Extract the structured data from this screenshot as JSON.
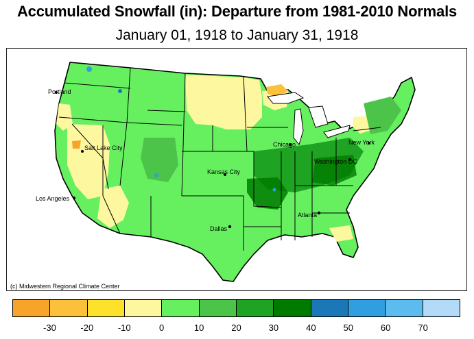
{
  "title": "Accumulated Snowfall (in): Departure from 1981-2010 Normals",
  "subtitle": "January 01, 1918 to January 31, 1918",
  "credit": "(c) Midwestern Regional Climate Center",
  "cities": [
    {
      "name": "Portland"
    },
    {
      "name": "Salt Lake City"
    },
    {
      "name": "Los Angeles"
    },
    {
      "name": "Kansas City"
    },
    {
      "name": "Chicago"
    },
    {
      "name": "Dallas"
    },
    {
      "name": "Atlanta"
    },
    {
      "name": "Washington DC"
    },
    {
      "name": "New York"
    }
  ],
  "legend": {
    "colors": [
      "#f7a42a",
      "#fbc13a",
      "#fde12a",
      "#fdf8a0",
      "#66f060",
      "#4cc44a",
      "#1fa322",
      "#007b00",
      "#1a78b8",
      "#2f9fe0",
      "#5cbcf0",
      "#b3dbf8"
    ],
    "tick_labels": [
      "-30",
      "-20",
      "-10",
      "0",
      "10",
      "20",
      "30",
      "40",
      "50",
      "60",
      "70"
    ]
  }
}
